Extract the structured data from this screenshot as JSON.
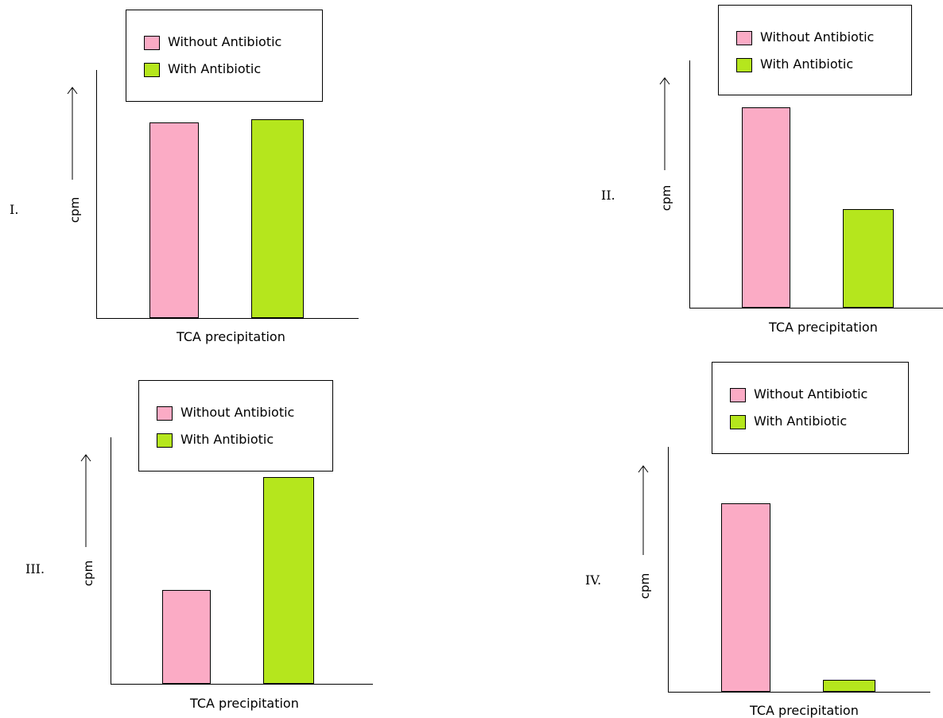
{
  "colors": {
    "without": "#fbabc5",
    "with": "#b5e61d"
  },
  "legend": {
    "without_label": "Without Antibiotic",
    "with_label": "With Antibiotic"
  },
  "chart_data": [
    {
      "type": "bar",
      "panel_label": "I.",
      "categories": [
        "Without Antibiotic",
        "With Antibiotic"
      ],
      "values": [
        0.79,
        0.8
      ],
      "xlabel": "TCA precipitation",
      "ylabel": "cpm"
    },
    {
      "type": "bar",
      "panel_label": "II.",
      "categories": [
        "Without Antibiotic",
        "With Antibiotic"
      ],
      "values": [
        0.81,
        0.4
      ],
      "xlabel": "TCA precipitation",
      "ylabel": "cpm"
    },
    {
      "type": "bar",
      "panel_label": "III.",
      "categories": [
        "Without Antibiotic",
        "With Antibiotic"
      ],
      "values": [
        0.38,
        0.84
      ],
      "xlabel": "TCA precipitation",
      "ylabel": "cpm"
    },
    {
      "type": "bar",
      "panel_label": "IV.",
      "categories": [
        "Without Antibiotic",
        "With Antibiotic"
      ],
      "values": [
        0.77,
        0.05
      ],
      "xlabel": "TCA precipitation",
      "ylabel": "cpm"
    }
  ]
}
